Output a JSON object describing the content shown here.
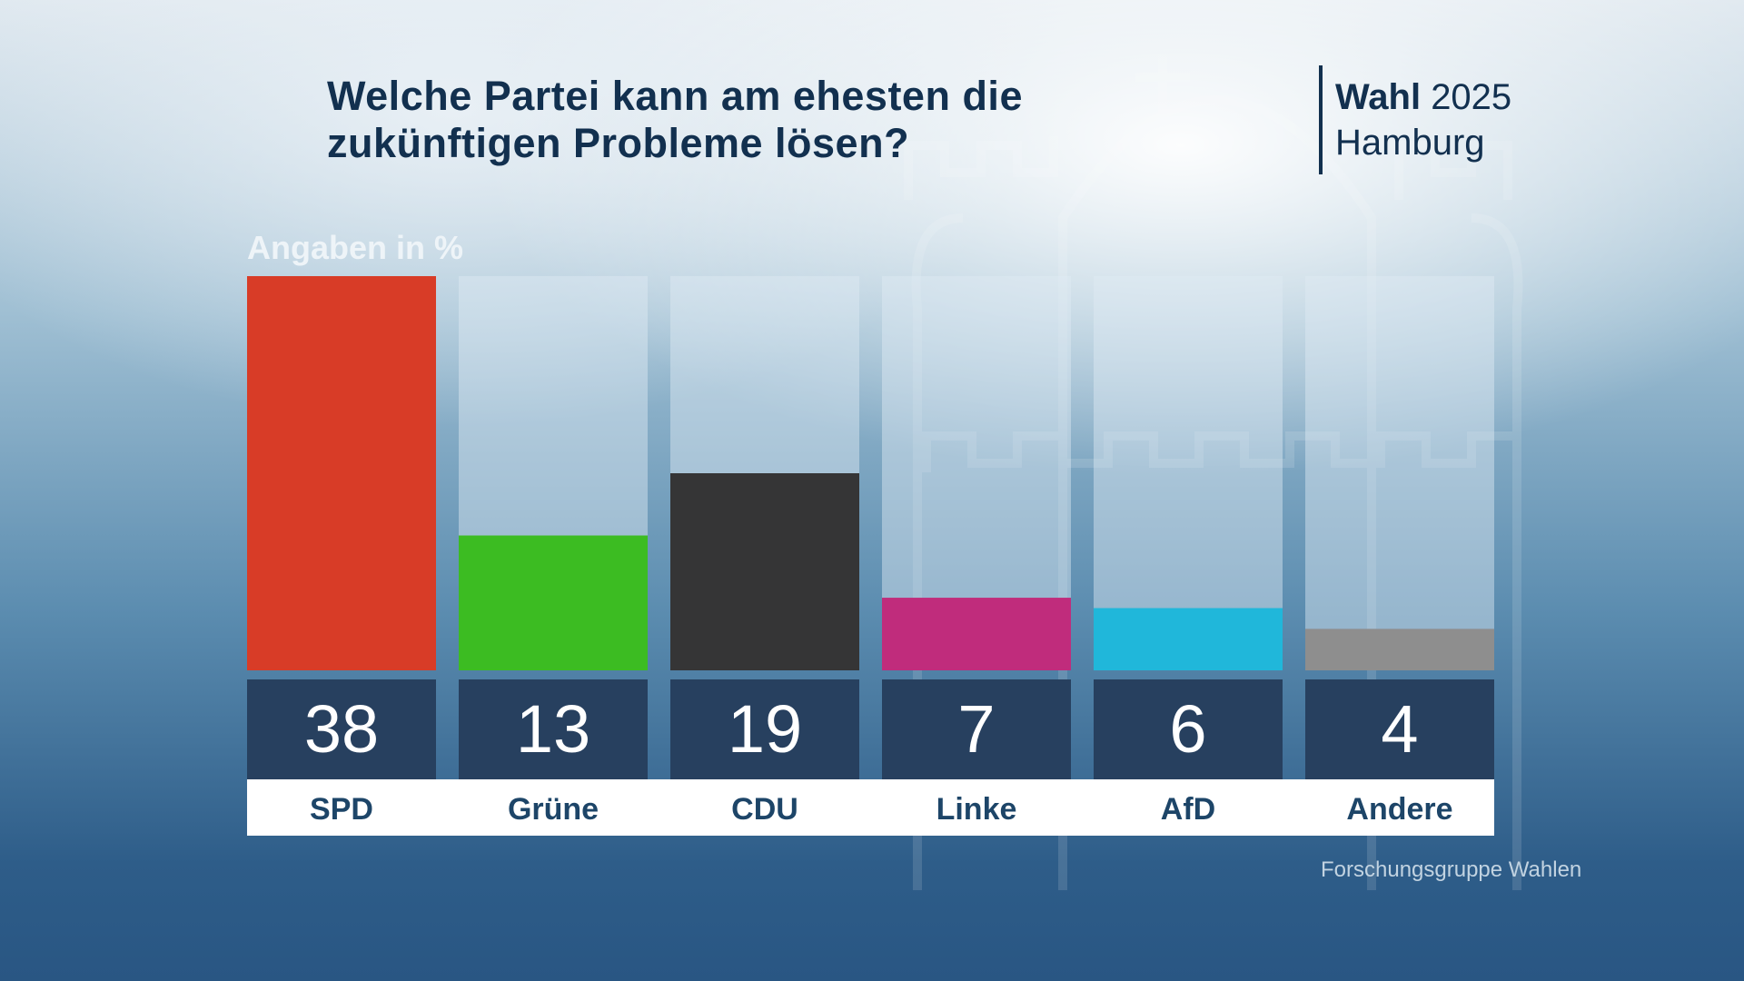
{
  "title": "Welche Partei kann am ehesten die zukünftigen Probleme lösen?",
  "badge": {
    "bold": "Wahl",
    "year": "2025",
    "place": "Hamburg"
  },
  "unit_label": "Angaben in %",
  "source": "Forschungsgruppe Wahlen",
  "chart_data": {
    "type": "bar",
    "categories": [
      "SPD",
      "Grüne",
      "CDU",
      "Linke",
      "AfD",
      "Andere"
    ],
    "values": [
      38,
      13,
      19,
      7,
      6,
      4
    ],
    "value_labels": [
      "38",
      "13",
      "19",
      "7",
      "6",
      "4"
    ],
    "colors": [
      "#d83c27",
      "#3cbc22",
      "#353536",
      "#c02c7c",
      "#20b7da",
      "#8e8e8e"
    ],
    "ylabel": "Angaben in %",
    "ylim": [
      0,
      38
    ],
    "grid": false,
    "legend": "none"
  }
}
